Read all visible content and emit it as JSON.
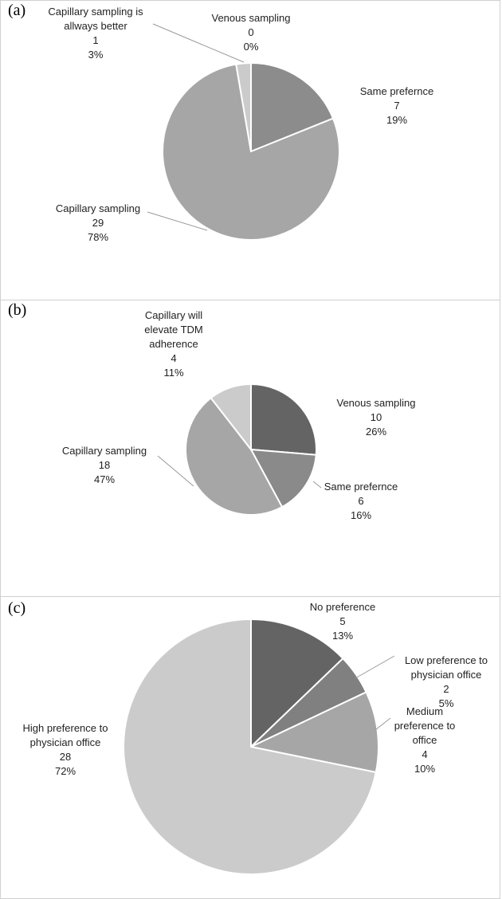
{
  "chart_data": [
    {
      "type": "pie",
      "label": "(a)",
      "categories": [
        "Venous sampling",
        "Same prefernce",
        "Capillary sampling",
        "Capillary sampling is allways better"
      ],
      "values": [
        0,
        7,
        29,
        1
      ],
      "percent_labels": [
        "0%",
        "19%",
        "78%",
        "3%"
      ],
      "colors": [
        "#6e6e6e",
        "#8c8c8c",
        "#a6a6a6",
        "#cbcbcb"
      ]
    },
    {
      "type": "pie",
      "label": "(b)",
      "categories": [
        "Venous sampling",
        "Same prefernce",
        "Capillary sampling",
        "Capillary will elevate TDM adherence"
      ],
      "values": [
        10,
        6,
        18,
        4
      ],
      "percent_labels": [
        "26%",
        "16%",
        "47%",
        "11%"
      ],
      "colors": [
        "#646464",
        "#8a8a8a",
        "#a6a6a6",
        "#cbcbcb"
      ]
    },
    {
      "type": "pie",
      "label": "(c)",
      "categories": [
        "No preference",
        "Low preference to physician office",
        "Medium preference to office",
        "High preference to physician office"
      ],
      "values": [
        5,
        2,
        4,
        28
      ],
      "percent_labels": [
        "13%",
        "5%",
        "10%",
        "72%"
      ],
      "colors": [
        "#646464",
        "#808080",
        "#a6a6a6",
        "#cbcbcb"
      ]
    }
  ]
}
